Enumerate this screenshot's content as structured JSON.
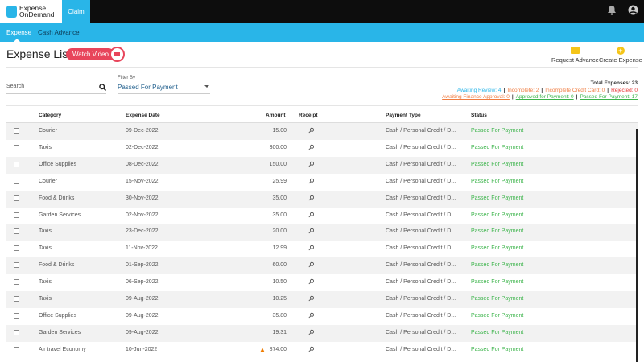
{
  "app": {
    "logo_line1": "Expense",
    "logo_line2": "OnDemand",
    "top_tab": "Claim"
  },
  "nav": {
    "items": [
      "Expense",
      "Cash Advance"
    ]
  },
  "page": {
    "title": "Expense List",
    "watch_video": "Watch Video"
  },
  "actions": {
    "request_advance": "Request Advance",
    "create_expense": "Create Expense"
  },
  "search": {
    "placeholder": "Search"
  },
  "filter": {
    "label": "Filter By",
    "value": "Passed For Payment"
  },
  "stats": {
    "total": "Total Expenses: 23",
    "line1": [
      {
        "label": "Awaiting Review: 4",
        "color": "#29b5e8"
      },
      {
        "label": "Incomplete: 2",
        "color": "#f07c40"
      },
      {
        "label": "Incomplete Credit Card: 0",
        "color": "#f07c40"
      },
      {
        "label": "Rejected: 0",
        "color": "#e8312f"
      }
    ],
    "line2": [
      {
        "label": "Awaiting Finance Approval: 0",
        "color": "#f07c40"
      },
      {
        "label": "Approved for Payment: 0",
        "color": "#3cb44b"
      },
      {
        "label": "Passed For Payment: 17",
        "color": "#3cb44b"
      }
    ]
  },
  "table": {
    "headers": [
      "Category",
      "Expense Date",
      "Amount",
      "Receipt",
      "Payment Type",
      "Status"
    ],
    "rows": [
      [
        "Courier",
        "09-Dec-2022",
        "15.00",
        "Cash / Personal Credit / D...",
        "Passed For Payment",
        false
      ],
      [
        "Taxis",
        "02-Dec-2022",
        "300.00",
        "Cash / Personal Credit / D...",
        "Passed For Payment",
        false
      ],
      [
        "Office Supplies",
        "08-Dec-2022",
        "150.00",
        "Cash / Personal Credit / D...",
        "Passed For Payment",
        false
      ],
      [
        "Courier",
        "15-Nov-2022",
        "25.99",
        "Cash / Personal Credit / D...",
        "Passed For Payment",
        false
      ],
      [
        "Food & Drinks",
        "30-Nov-2022",
        "35.00",
        "Cash / Personal Credit / D...",
        "Passed For Payment",
        false
      ],
      [
        "Garden Services",
        "02-Nov-2022",
        "35.00",
        "Cash / Personal Credit / D...",
        "Passed For Payment",
        false
      ],
      [
        "Taxis",
        "23-Dec-2022",
        "20.00",
        "Cash / Personal Credit / D...",
        "Passed For Payment",
        false
      ],
      [
        "Taxis",
        "11-Nov-2022",
        "12.99",
        "Cash / Personal Credit / D...",
        "Passed For Payment",
        false
      ],
      [
        "Food & Drinks",
        "01-Sep-2022",
        "60.00",
        "Cash / Personal Credit / D...",
        "Passed For Payment",
        false
      ],
      [
        "Taxis",
        "06-Sep-2022",
        "10.50",
        "Cash / Personal Credit / D...",
        "Passed For Payment",
        false
      ],
      [
        "Taxis",
        "09-Aug-2022",
        "10.25",
        "Cash / Personal Credit / D...",
        "Passed For Payment",
        false
      ],
      [
        "Office Supplies",
        "09-Aug-2022",
        "35.80",
        "Cash / Personal Credit / D...",
        "Passed For Payment",
        false
      ],
      [
        "Garden Services",
        "09-Aug-2022",
        "19.31",
        "Cash / Personal Credit / D...",
        "Passed For Payment",
        false
      ],
      [
        "Air travel Economy",
        "10-Jun-2022",
        "874.00",
        "Cash / Personal Credit / D...",
        "Passed For Payment",
        true
      ]
    ]
  },
  "colors": {
    "brand": "#29b5e8",
    "watch": "#e8455b",
    "passed": "#3cb44b",
    "warning": "#f07c00"
  }
}
